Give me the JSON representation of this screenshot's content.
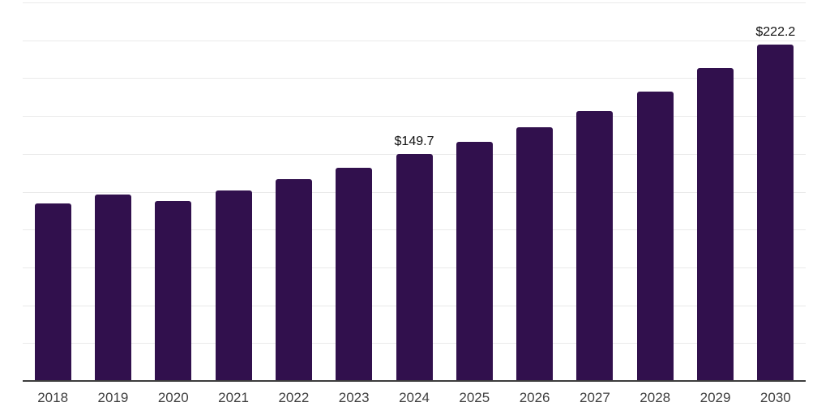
{
  "chart_data": {
    "type": "bar",
    "title": "",
    "xlabel": "",
    "ylabel": "",
    "categories": [
      "2018",
      "2019",
      "2020",
      "2021",
      "2022",
      "2023",
      "2024",
      "2025",
      "2026",
      "2027",
      "2028",
      "2029",
      "2030"
    ],
    "values": [
      117.2,
      122.9,
      119.1,
      125.6,
      133.2,
      140.8,
      149.7,
      158.1,
      167.7,
      178.4,
      191.2,
      206.7,
      222.2
    ],
    "data_labels": [
      {
        "index": 6,
        "text": "$149.7"
      },
      {
        "index": 12,
        "text": "$222.2"
      }
    ],
    "ylim": [
      0,
      250
    ],
    "grid_step": 25,
    "grid": true,
    "legend": false,
    "colors": {
      "bar": "#31104d",
      "gridline": "#eaeaea",
      "axis_line": "#3d3d3d",
      "tick_label": "#404040",
      "data_label": "#111111",
      "background": "#ffffff"
    }
  }
}
